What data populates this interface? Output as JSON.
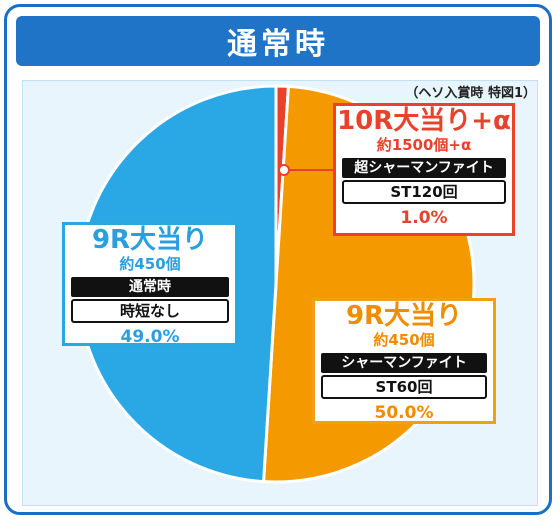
{
  "title": "通常時",
  "note": "（ヘソ入賞時 特図1）",
  "colors": {
    "blue": "#2aa8e6",
    "orange": "#f49a00",
    "red": "#e8412c",
    "header": "#1f74c8"
  },
  "chart_data": {
    "type": "pie",
    "slices": [
      {
        "label": "10R大当り+α",
        "value": 1.0,
        "color": "#e8412c"
      },
      {
        "label": "9R大当り",
        "value": 50.0,
        "color": "#f49a00"
      },
      {
        "label": "9R大当り",
        "value": 49.0,
        "color": "#2aa8e6"
      }
    ]
  },
  "labels": {
    "r10": {
      "title": "10R大当り+α",
      "sub": "約1500個+α",
      "head": "超シャーマンファイト",
      "body": "ST120回",
      "pct": "1.0%"
    },
    "r9_right": {
      "title": "9R大当り",
      "sub": "約450個",
      "head": "シャーマンファイト",
      "body": "ST60回",
      "pct": "50.0%"
    },
    "r9_left": {
      "title": "9R大当り",
      "sub": "約450個",
      "head": "通常時",
      "body": "時短なし",
      "pct": "49.0%"
    }
  }
}
